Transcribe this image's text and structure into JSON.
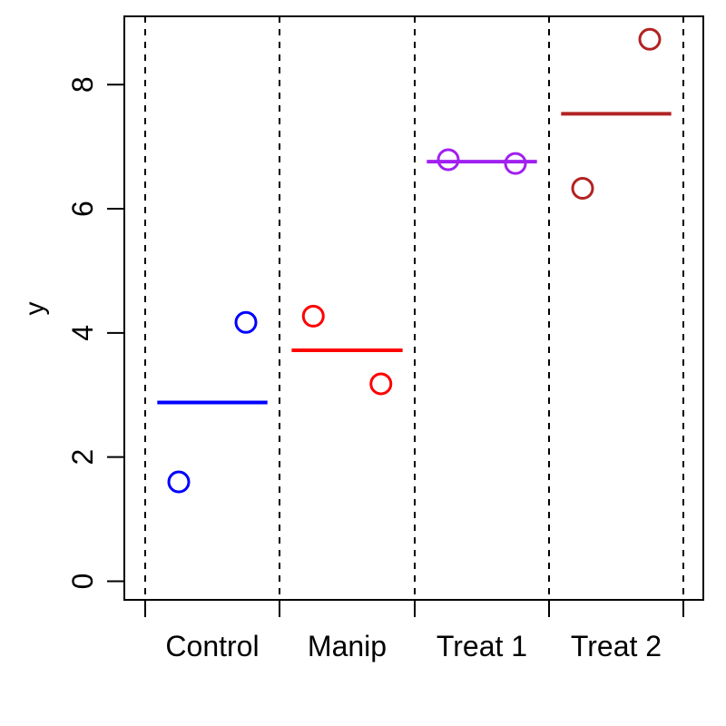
{
  "chart_data": {
    "type": "scatter",
    "xlabel": "",
    "ylabel": "y",
    "ylim": [
      -0.3,
      9.1
    ],
    "yticks": [
      0,
      2,
      4,
      6,
      8
    ],
    "grid": false,
    "legend": "none",
    "groups": [
      {
        "label": "Control",
        "color": "#0000ff",
        "points": [
          1.6,
          4.17
        ],
        "mean": 2.88
      },
      {
        "label": "Manip",
        "color": "#ff0000",
        "points": [
          4.27,
          3.18
        ],
        "mean": 3.72
      },
      {
        "label": "Treat 1",
        "color": "#a020f0",
        "points": [
          6.79,
          6.73
        ],
        "mean": 6.76
      },
      {
        "label": "Treat 2",
        "color": "#b22222",
        "points": [
          6.33,
          8.73
        ],
        "mean": 7.53
      }
    ]
  }
}
